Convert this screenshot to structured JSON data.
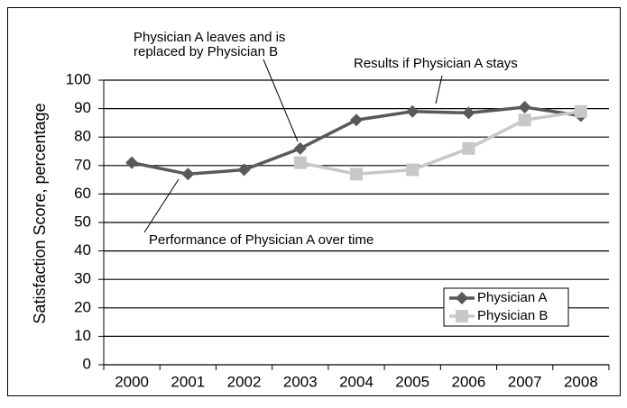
{
  "chart_data": {
    "type": "line",
    "ylabel": "Satisfaction Score, percentage",
    "categories": [
      "2000",
      "2001",
      "2002",
      "2003",
      "2004",
      "2005",
      "2006",
      "2007",
      "2008"
    ],
    "series": [
      {
        "name": "Physician A",
        "color": "#595959",
        "marker": "diamond",
        "values": [
          71,
          67,
          68.5,
          76,
          86,
          89,
          88.5,
          90.5,
          87.5
        ]
      },
      {
        "name": "Physician B",
        "color": "#c8c8c8",
        "marker": "square",
        "values": [
          null,
          null,
          null,
          71,
          67,
          68.5,
          76,
          86,
          89
        ]
      }
    ],
    "ylim": [
      0,
      100
    ],
    "yticks": [
      0,
      10,
      20,
      30,
      40,
      50,
      60,
      70,
      80,
      90,
      100
    ],
    "grid": true,
    "legend": "bottom right",
    "annotations": [
      {
        "lines": [
          "Physician A leaves and is",
          "replaced by Physician B"
        ]
      },
      {
        "lines": [
          "Results if Physician A stays"
        ]
      },
      {
        "lines": [
          "Performance of Physician A over time"
        ]
      }
    ]
  }
}
